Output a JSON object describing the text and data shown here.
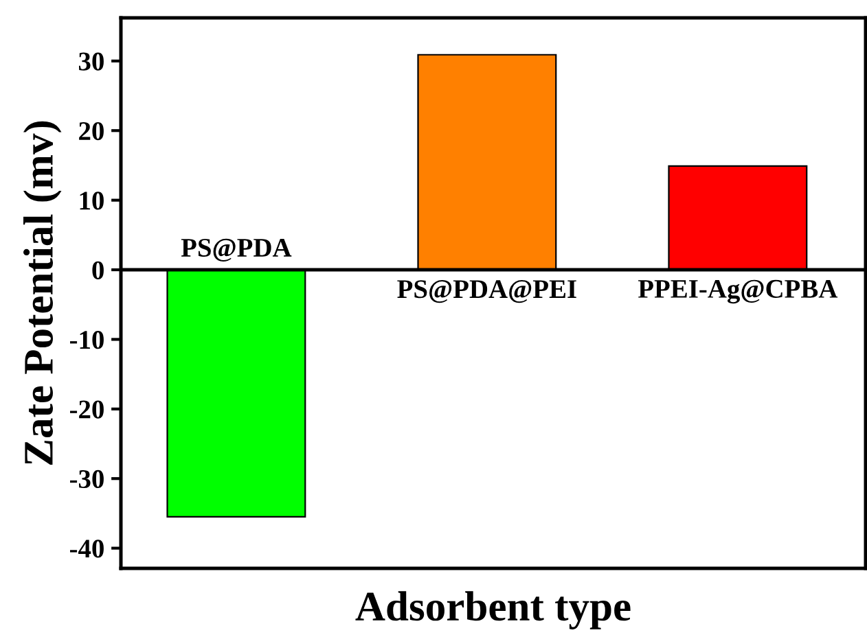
{
  "chart_data": {
    "type": "bar",
    "xlabel": "Adsorbent type",
    "ylabel": "Zate Potential (mv)",
    "categories": [
      "PS@PDA",
      "PS@PDA@PEI",
      "PPEI-Ag@CPBA"
    ],
    "values": [
      -35.5,
      30.9,
      14.9
    ],
    "colors": [
      "#00ff00",
      "#ff8000",
      "#ff0000"
    ],
    "ylim": [
      -42.9,
      36.2
    ],
    "yticks": [
      -40,
      -30,
      -20,
      -10,
      0,
      10,
      20,
      30
    ],
    "tick_labels": "y",
    "grid": false,
    "legend": false
  }
}
